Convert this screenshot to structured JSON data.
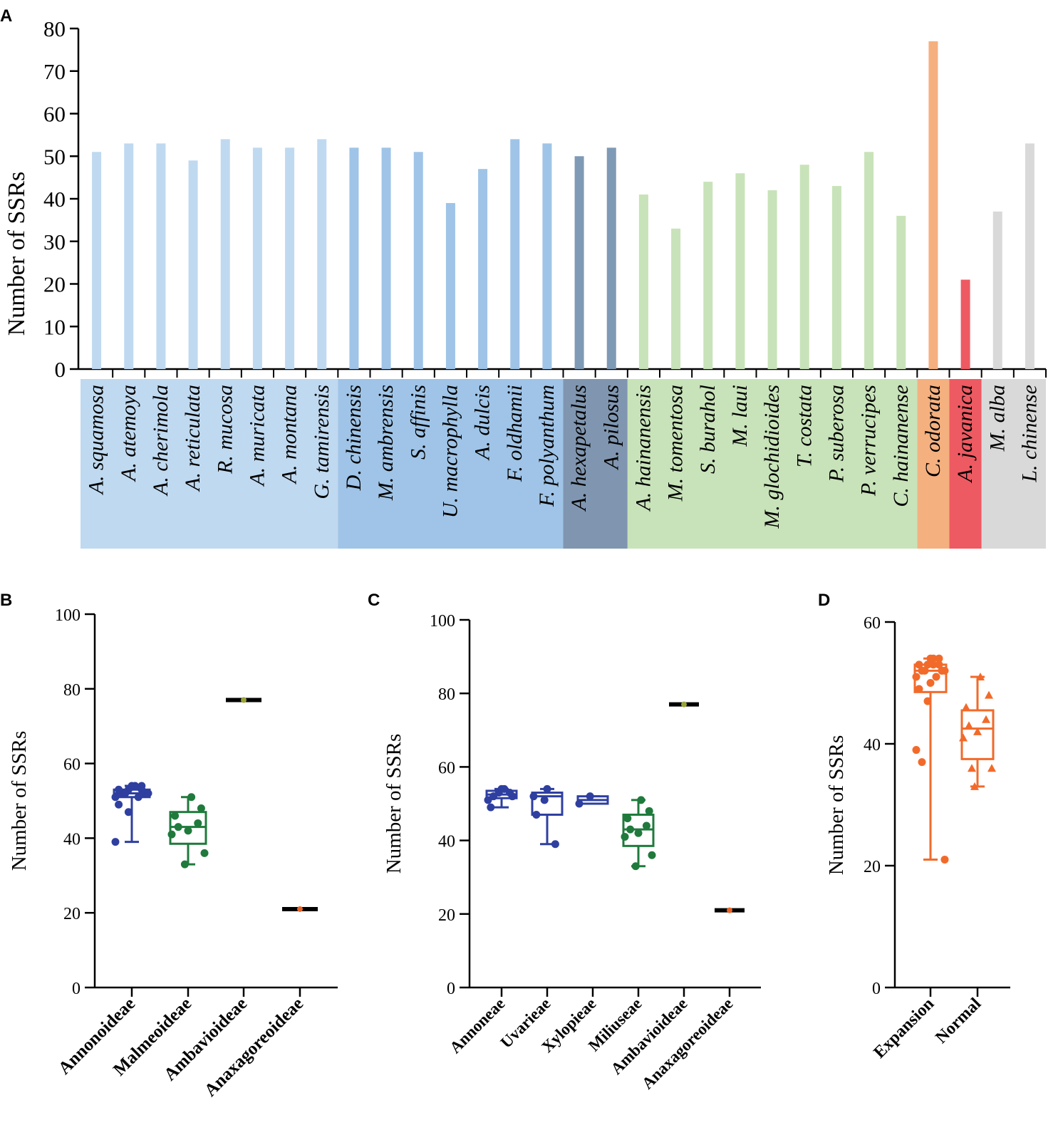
{
  "chart_data": [
    {
      "panel": "A",
      "type": "bar",
      "ylabel": "Number of SSRs",
      "ylim": [
        0,
        80
      ],
      "yticks": [
        0,
        10,
        20,
        30,
        40,
        50,
        60,
        70,
        80
      ],
      "categories": [
        "A. squamosa",
        "A. atemoya",
        "A. cherimola",
        "A. reticulata",
        "R. mucosa",
        "A. muricata",
        "A. montana",
        "G. tamirensis",
        "D. chinensis",
        "M. ambrensis",
        "S. affinis",
        "U. macrophylla",
        "A. dulcis",
        "F. oldhamii",
        "F. polyanthum",
        "A. hexapetalus",
        "A. pilosus",
        "A. hainanensis",
        "M. tomentosa",
        "S. burahol",
        "M. laui",
        "M. glochidioides",
        "T. costata",
        "P. suberosa",
        "P. verrucipes",
        "C. hainanense",
        "C. odorata",
        "A. javanica",
        "M. alba",
        "L. chinense"
      ],
      "values": [
        51,
        53,
        53,
        49,
        54,
        52,
        52,
        54,
        52,
        52,
        51,
        39,
        47,
        54,
        53,
        50,
        52,
        41,
        33,
        44,
        46,
        42,
        48,
        43,
        51,
        36,
        77,
        21,
        37,
        53
      ],
      "groups": [
        {
          "count": 8,
          "bar_color": "#bfd9f0",
          "band_color": "#bfd9f0"
        },
        {
          "count": 7,
          "bar_color": "#9fc4e7",
          "band_color": "#9fc4e7"
        },
        {
          "count": 2,
          "bar_color": "#7f9ab5",
          "band_color": "#8096b0"
        },
        {
          "count": 9,
          "bar_color": "#c8e3b9",
          "band_color": "#c8e3b9"
        },
        {
          "count": 1,
          "bar_color": "#f5b07f",
          "band_color": "#f5b07f"
        },
        {
          "count": 1,
          "bar_color": "#ee5a62",
          "band_color": "#ee5a62"
        },
        {
          "count": 2,
          "bar_color": "#d9d9d9",
          "band_color": "#d9d9d9"
        }
      ]
    },
    {
      "panel": "B",
      "type": "box",
      "ylabel": "Number of SSRs",
      "ylim": [
        0,
        100
      ],
      "yticks": [
        0,
        20,
        40,
        60,
        80,
        100
      ],
      "groups": [
        {
          "name": "Annonoideae",
          "color": "#2e3fa0",
          "marker": "circle",
          "min": 39,
          "q1": 51,
          "median": 52,
          "q3": 53,
          "max": 54,
          "points": [
            51,
            53,
            53,
            49,
            54,
            52,
            52,
            54,
            52,
            52,
            51,
            39,
            47,
            54,
            53
          ]
        },
        {
          "name": "Malmeoideae",
          "color": "#1f7a3c",
          "marker": "circle",
          "min": 33,
          "q1": 38.5,
          "median": 43,
          "q3": 47,
          "max": 51,
          "points": [
            41,
            33,
            44,
            46,
            42,
            48,
            43,
            51,
            36
          ]
        },
        {
          "name": "Ambavioideae",
          "color": "#9aa33a",
          "marker": "circle",
          "min": 77,
          "q1": 77,
          "median": 77,
          "q3": 77,
          "max": 77,
          "points": [
            77
          ]
        },
        {
          "name": "Anaxagoreoideae",
          "color": "#e8662a",
          "marker": "circle",
          "min": 21,
          "q1": 21,
          "median": 21,
          "q3": 21,
          "max": 21,
          "points": [
            21
          ]
        }
      ]
    },
    {
      "panel": "C",
      "type": "box",
      "ylabel": "Number of SSRs",
      "ylim": [
        0,
        100
      ],
      "yticks": [
        0,
        20,
        40,
        60,
        80,
        100
      ],
      "groups": [
        {
          "name": "Annoneae",
          "color": "#2e3fa0",
          "marker": "circle",
          "min": 49,
          "q1": 51.5,
          "median": 52.5,
          "q3": 53.5,
          "max": 54,
          "points": [
            51,
            53,
            53,
            49,
            54,
            52,
            52,
            54
          ]
        },
        {
          "name": "Uvarieae",
          "color": "#2e3fa0",
          "marker": "circle",
          "min": 39,
          "q1": 47,
          "median": 52,
          "q3": 53,
          "max": 54,
          "points": [
            52,
            51,
            39,
            47,
            54
          ]
        },
        {
          "name": "Xylopieae",
          "color": "#2e3fa0",
          "marker": "circle",
          "min": 50,
          "q1": 50,
          "median": 51,
          "q3": 52,
          "max": 52,
          "points": [
            50,
            52
          ]
        },
        {
          "name": "Miliuseae",
          "color": "#1f7a3c",
          "marker": "circle",
          "min": 33,
          "q1": 38.5,
          "median": 43,
          "q3": 47,
          "max": 51,
          "points": [
            41,
            33,
            44,
            46,
            42,
            48,
            43,
            51,
            36
          ]
        },
        {
          "name": "Ambavioideae",
          "color": "#9aa33a",
          "marker": "circle",
          "min": 77,
          "q1": 77,
          "median": 77,
          "q3": 77,
          "max": 77,
          "points": [
            77
          ]
        },
        {
          "name": "Anaxagoreoideae",
          "color": "#e8662a",
          "marker": "circle",
          "min": 21,
          "q1": 21,
          "median": 21,
          "q3": 21,
          "max": 21,
          "points": [
            21
          ]
        }
      ]
    },
    {
      "panel": "D",
      "type": "box",
      "ylabel": "Number of SSRs",
      "ylim": [
        0,
        60
      ],
      "yticks": [
        0,
        20,
        40,
        60
      ],
      "groups": [
        {
          "name": "Expansion",
          "color": "#f26a2a",
          "marker": "circle",
          "min": 21,
          "q1": 48.5,
          "median": 52,
          "q3": 53,
          "max": 54,
          "points": [
            51,
            53,
            53,
            49,
            54,
            52,
            52,
            54,
            52,
            52,
            51,
            39,
            47,
            54,
            53,
            50,
            52,
            37,
            53,
            21
          ]
        },
        {
          "name": "Normal",
          "color": "#f26a2a",
          "marker": "triangle",
          "min": 33,
          "q1": 37.5,
          "median": 42.5,
          "q3": 45.5,
          "max": 51,
          "points": [
            41,
            33,
            44,
            46,
            42,
            48,
            43,
            51,
            36,
            36
          ]
        }
      ]
    }
  ]
}
